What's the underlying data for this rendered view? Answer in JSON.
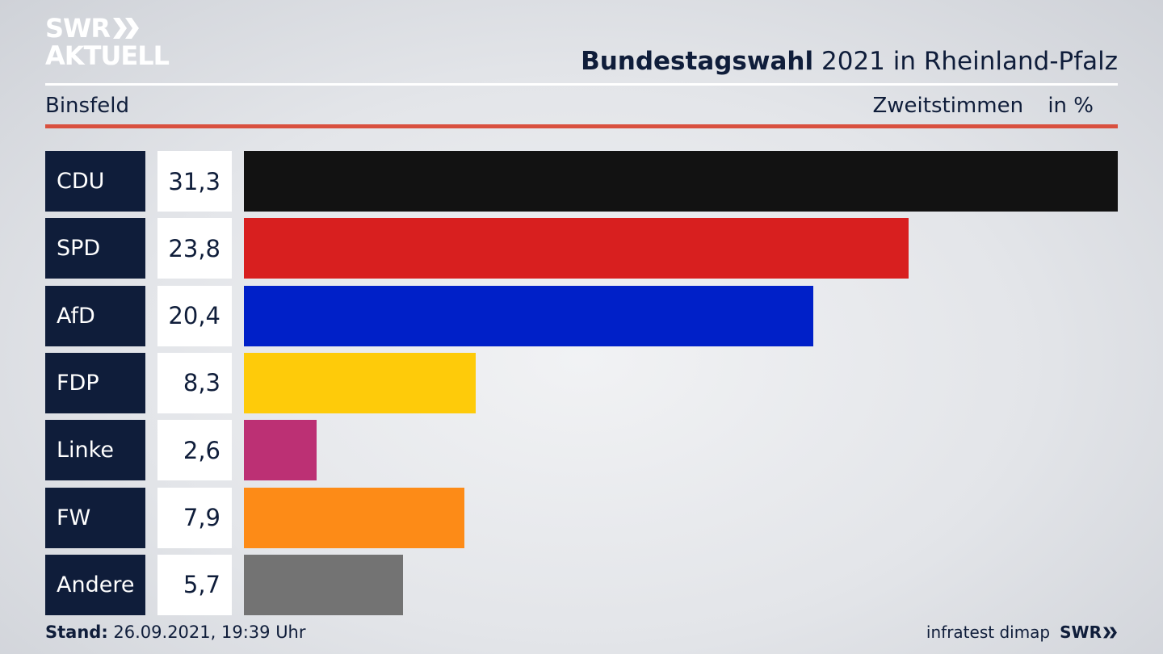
{
  "logo": {
    "line1": "SWR",
    "line2": "AKTUELL"
  },
  "header": {
    "title_bold": "Bundestagswahl",
    "title_rest": "2021 in Rheinland-Pfalz",
    "location": "Binsfeld",
    "measure": "Zweitstimmen",
    "unit": "in %"
  },
  "chart_data": {
    "type": "bar",
    "orientation": "horizontal",
    "categories": [
      "CDU",
      "SPD",
      "AfD",
      "FDP",
      "Linke",
      "FW",
      "Andere"
    ],
    "values": [
      31.3,
      23.8,
      20.4,
      8.3,
      2.6,
      7.9,
      5.7
    ],
    "value_labels": [
      "31,3",
      "23,8",
      "20,4",
      "8,3",
      "2,6",
      "7,9",
      "5,7"
    ],
    "colors": [
      "#121212",
      "#d81f1f",
      "#0020c8",
      "#fecb0a",
      "#bc3074",
      "#fd8b17",
      "#737373"
    ],
    "title": "Bundestagswahl 2021 in Rheinland-Pfalz",
    "xlim": [
      0,
      31.3
    ]
  },
  "footer": {
    "stand_label": "Stand:",
    "stand_value": "26.09.2021, 19:39 Uhr",
    "source": "infratest dimap",
    "brand": "SWR"
  }
}
